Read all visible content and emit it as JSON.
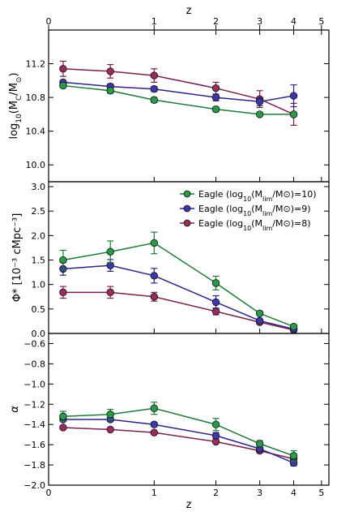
{
  "figure": {
    "top_axis_label": "z",
    "bottom_axis_label": "z",
    "z_ticks": [
      "0",
      "1",
      "2",
      "3",
      "4",
      "5"
    ],
    "z_tick_values": [
      0,
      1,
      2,
      3,
      4,
      5
    ],
    "x_domain": "log10(1+z)"
  },
  "chart_data": [
    {
      "type": "line",
      "panel": "mc",
      "ylabel": "log10(MC/M⊙)",
      "ylim": [
        9.8,
        11.6
      ],
      "yticks": [
        10.0,
        10.4,
        10.8,
        11.2
      ],
      "ytick_labels": [
        "10.0",
        "10.4",
        "10.8",
        "11.2"
      ],
      "x": [
        0.1,
        0.5,
        1.0,
        2.0,
        3.0,
        4.0
      ],
      "series": [
        {
          "id": "m10",
          "values": [
            10.94,
            10.88,
            10.77,
            10.66,
            10.6,
            10.6
          ],
          "err": [
            0.02,
            0.03,
            0.03,
            0.03,
            0.02,
            0.02
          ]
        },
        {
          "id": "m9",
          "values": [
            10.98,
            10.93,
            10.9,
            10.8,
            10.75,
            10.82
          ],
          "err": [
            0.02,
            0.03,
            0.03,
            0.04,
            0.05,
            0.13
          ]
        },
        {
          "id": "m8",
          "values": [
            11.14,
            11.11,
            11.06,
            10.91,
            10.78,
            10.6
          ],
          "err": [
            0.09,
            0.08,
            0.08,
            0.07,
            0.1,
            0.13
          ]
        }
      ]
    },
    {
      "type": "line",
      "panel": "phi",
      "ylabel": "Φ* [10⁻³ cMpc⁻³]",
      "ylim": [
        0.0,
        3.1
      ],
      "yticks": [
        0.0,
        0.5,
        1.0,
        1.5,
        2.0,
        2.5,
        3.0
      ],
      "ytick_labels": [
        "0.0",
        "0.5",
        "1.0",
        "1.5",
        "2.0",
        "2.5",
        "3.0"
      ],
      "x": [
        0.1,
        0.5,
        1.0,
        2.0,
        3.0,
        4.0
      ],
      "legend_position": "top-right",
      "series": [
        {
          "id": "m10",
          "values": [
            1.5,
            1.67,
            1.85,
            1.03,
            0.41,
            0.14
          ],
          "err": [
            0.2,
            0.22,
            0.22,
            0.14,
            0.04,
            0.03
          ]
        },
        {
          "id": "m9",
          "values": [
            1.32,
            1.39,
            1.18,
            0.64,
            0.26,
            0.09
          ],
          "err": [
            0.13,
            0.12,
            0.15,
            0.13,
            0.03,
            0.02
          ]
        },
        {
          "id": "m8",
          "values": [
            0.84,
            0.84,
            0.75,
            0.45,
            0.23,
            0.07
          ],
          "err": [
            0.12,
            0.12,
            0.09,
            0.07,
            0.03,
            0.02
          ]
        }
      ]
    },
    {
      "type": "line",
      "panel": "alpha",
      "ylabel": "α",
      "ylim": [
        -2.0,
        -0.5
      ],
      "yticks": [
        -2.0,
        -1.8,
        -1.6,
        -1.4,
        -1.2,
        -1.0,
        -0.8,
        -0.6
      ],
      "ytick_labels": [
        "−2.0",
        "−1.8",
        "−1.6",
        "−1.4",
        "−1.2",
        "−1.0",
        "−0.8",
        "−0.6"
      ],
      "x": [
        0.1,
        0.5,
        1.0,
        2.0,
        3.0,
        4.0
      ],
      "series": [
        {
          "id": "m10",
          "values": [
            -1.32,
            -1.3,
            -1.24,
            -1.4,
            -1.59,
            -1.71
          ],
          "err": [
            0.05,
            0.05,
            0.06,
            0.06,
            0.03,
            0.05
          ]
        },
        {
          "id": "m9",
          "values": [
            -1.35,
            -1.35,
            -1.4,
            -1.51,
            -1.64,
            -1.78
          ],
          "err": [
            0.02,
            0.02,
            0.02,
            0.03,
            0.03,
            0.03
          ]
        },
        {
          "id": "m8",
          "values": [
            -1.43,
            -1.45,
            -1.48,
            -1.57,
            -1.66,
            -1.74
          ],
          "err": [
            0.01,
            0.01,
            0.01,
            0.01,
            0.02,
            0.03
          ]
        }
      ]
    }
  ],
  "legend": [
    {
      "id": "m10",
      "prefix": "Eagle (log",
      "sub": "10",
      "mid": "(M",
      "msub": "lim",
      "suffix": "/M⊙)=10)"
    },
    {
      "id": "m9",
      "prefix": "Eagle (log",
      "sub": "10",
      "mid": "(M",
      "msub": "lim",
      "suffix": "/M⊙)=9)"
    },
    {
      "id": "m8",
      "prefix": "Eagle (log",
      "sub": "10",
      "mid": "(M",
      "msub": "lim",
      "suffix": "/M⊙)=8)"
    }
  ],
  "colors": {
    "m10": "#1f7a3a",
    "m9": "#2b2486",
    "m8": "#7b1f4c",
    "marker_m10": "#2a9a4a",
    "marker_m9": "#3d37a8",
    "marker_m8": "#9a2b5e"
  }
}
